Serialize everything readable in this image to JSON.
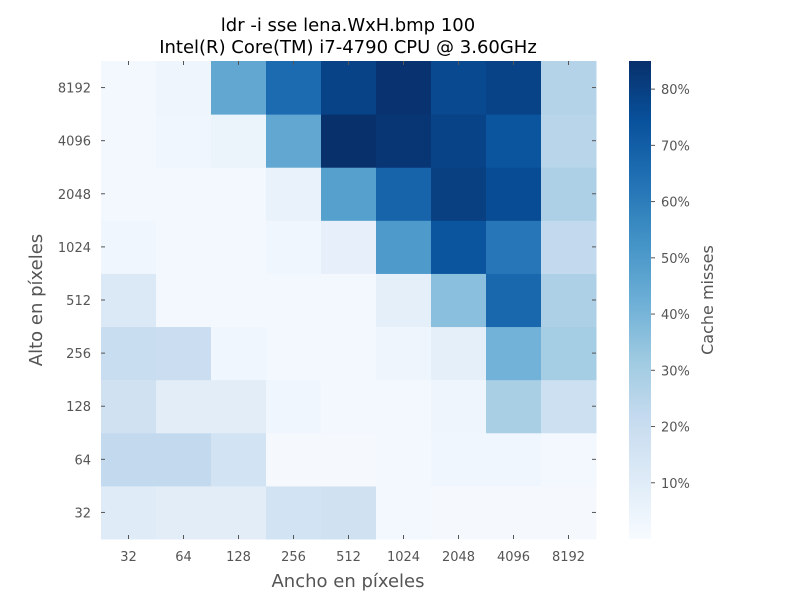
{
  "chart_data": {
    "type": "heatmap",
    "title_lines": [
      "ldr -i sse lena.WxH.bmp 100",
      "Intel(R) Core(TM) i7-4790 CPU @ 3.60GHz"
    ],
    "xlabel": "Ancho en píxeles",
    "ylabel": "Alto en píxeles",
    "x_categories": [
      "32",
      "64",
      "128",
      "256",
      "512",
      "1024",
      "2048",
      "4096",
      "8192"
    ],
    "y_categories": [
      "32",
      "64",
      "128",
      "256",
      "512",
      "1024",
      "2048",
      "4096",
      "8192"
    ],
    "values": [
      [
        10,
        9,
        9,
        16,
        17,
        2,
        1,
        1,
        1
      ],
      [
        22,
        22,
        16,
        1,
        1,
        2,
        3,
        3,
        2
      ],
      [
        17,
        9,
        9,
        3,
        2,
        2,
        4,
        29,
        18
      ],
      [
        20,
        19,
        3,
        2,
        2,
        4,
        8,
        41,
        30
      ],
      [
        12,
        2,
        2,
        2,
        2,
        8,
        36,
        67,
        28
      ],
      [
        3,
        2,
        2,
        3,
        7,
        50,
        73,
        62,
        22
      ],
      [
        2,
        2,
        2,
        6,
        48,
        68,
        80,
        76,
        28
      ],
      [
        2,
        3,
        5,
        45,
        85,
        83,
        79,
        73,
        25
      ],
      [
        2,
        4,
        45,
        66,
        79,
        84,
        77,
        79,
        26
      ]
    ],
    "values_note": "rows from bottom (y=32) to top (y=8192), columns left (x=32) to right (x=8192), in percent cache misses",
    "colorbar": {
      "label": "Cache misses",
      "ticks": [
        10,
        20,
        30,
        40,
        50,
        60,
        70,
        80
      ],
      "tick_labels": [
        "10%",
        "20%",
        "30%",
        "40%",
        "50%",
        "60%",
        "70%",
        "80%"
      ],
      "range": [
        0,
        85
      ],
      "colormap": "Blues",
      "colors": [
        "#f7fbff",
        "#deebf7",
        "#c6dbef",
        "#9ecae1",
        "#6baed6",
        "#4292c6",
        "#2171b5",
        "#08519c",
        "#08306b"
      ]
    }
  }
}
